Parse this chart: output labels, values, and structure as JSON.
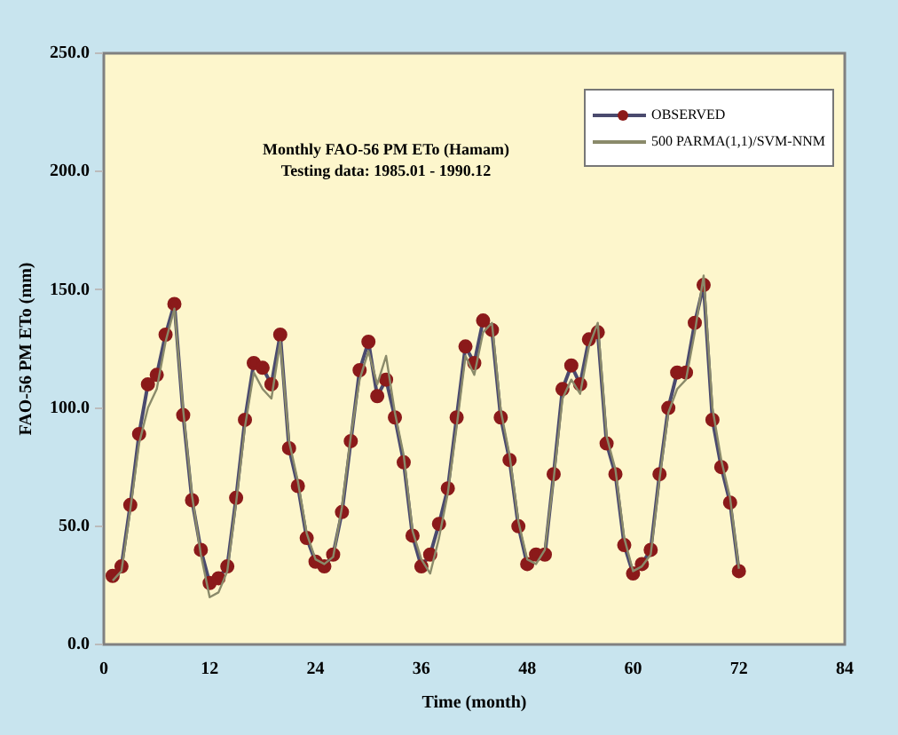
{
  "chart_data": {
    "type": "line",
    "title": "Monthly FAO-56 PM ETo (Hamam)",
    "subtitle": "Testing data: 1985.01 - 1990.12",
    "xlabel": "Time (month)",
    "ylabel": "FAO-56 PM ETo (mm)",
    "x": [
      1,
      2,
      3,
      4,
      5,
      6,
      7,
      8,
      9,
      10,
      11,
      12,
      13,
      14,
      15,
      16,
      17,
      18,
      19,
      20,
      21,
      22,
      23,
      24,
      25,
      26,
      27,
      28,
      29,
      30,
      31,
      32,
      33,
      34,
      35,
      36,
      37,
      38,
      39,
      40,
      41,
      42,
      43,
      44,
      45,
      46,
      47,
      48,
      49,
      50,
      51,
      52,
      53,
      54,
      55,
      56,
      57,
      58,
      59,
      60,
      61,
      62,
      63,
      64,
      65,
      66,
      67,
      68,
      69,
      70,
      71,
      72
    ],
    "series": [
      {
        "name": "OBSERVED",
        "color": "#8b1a1a",
        "values": [
          29,
          33,
          59,
          89,
          110,
          114,
          131,
          144,
          97,
          61,
          40,
          26,
          28,
          33,
          62,
          95,
          119,
          117,
          110,
          131,
          83,
          67,
          45,
          35,
          33,
          38,
          56,
          86,
          116,
          128,
          105,
          112,
          96,
          77,
          46,
          33,
          38,
          51,
          66,
          96,
          126,
          119,
          137,
          133,
          96,
          78,
          50,
          34,
          38,
          38,
          72,
          108,
          118,
          110,
          129,
          132,
          85,
          72,
          42,
          30,
          34,
          40,
          72,
          100,
          115,
          115,
          136,
          152,
          95,
          75,
          60,
          31
        ]
      },
      {
        "name": "500 PARMA(1,1)/SVM-NNM",
        "color": "#8a8a6a",
        "marker": "none",
        "values": [
          27,
          31,
          57,
          85,
          100,
          108,
          128,
          142,
          99,
          63,
          38,
          20,
          22,
          31,
          60,
          92,
          115,
          108,
          104,
          128,
          86,
          69,
          47,
          36,
          34,
          37,
          58,
          88,
          112,
          124,
          110,
          122,
          98,
          80,
          48,
          36,
          30,
          45,
          64,
          92,
          122,
          114,
          132,
          136,
          99,
          80,
          52,
          36,
          34,
          40,
          70,
          104,
          112,
          106,
          126,
          136,
          88,
          74,
          45,
          31,
          33,
          38,
          70,
          98,
          108,
          112,
          132,
          156,
          100,
          78,
          62,
          32
        ]
      }
    ],
    "xlim": [
      0,
      84
    ],
    "xticks": [
      0,
      12,
      24,
      36,
      48,
      60,
      72,
      84
    ],
    "ylim": [
      0,
      250
    ],
    "yticks": [
      {
        "value": 0,
        "label": "0.0"
      },
      {
        "value": 50,
        "label": "50.0"
      },
      {
        "value": 100,
        "label": "100.0"
      },
      {
        "value": 150,
        "label": "150.0"
      },
      {
        "value": 200,
        "label": "200.0"
      },
      {
        "value": 250,
        "label": "250.0"
      }
    ],
    "grid": false,
    "legend": "top right",
    "marker": "circle",
    "line_style": "solid"
  }
}
